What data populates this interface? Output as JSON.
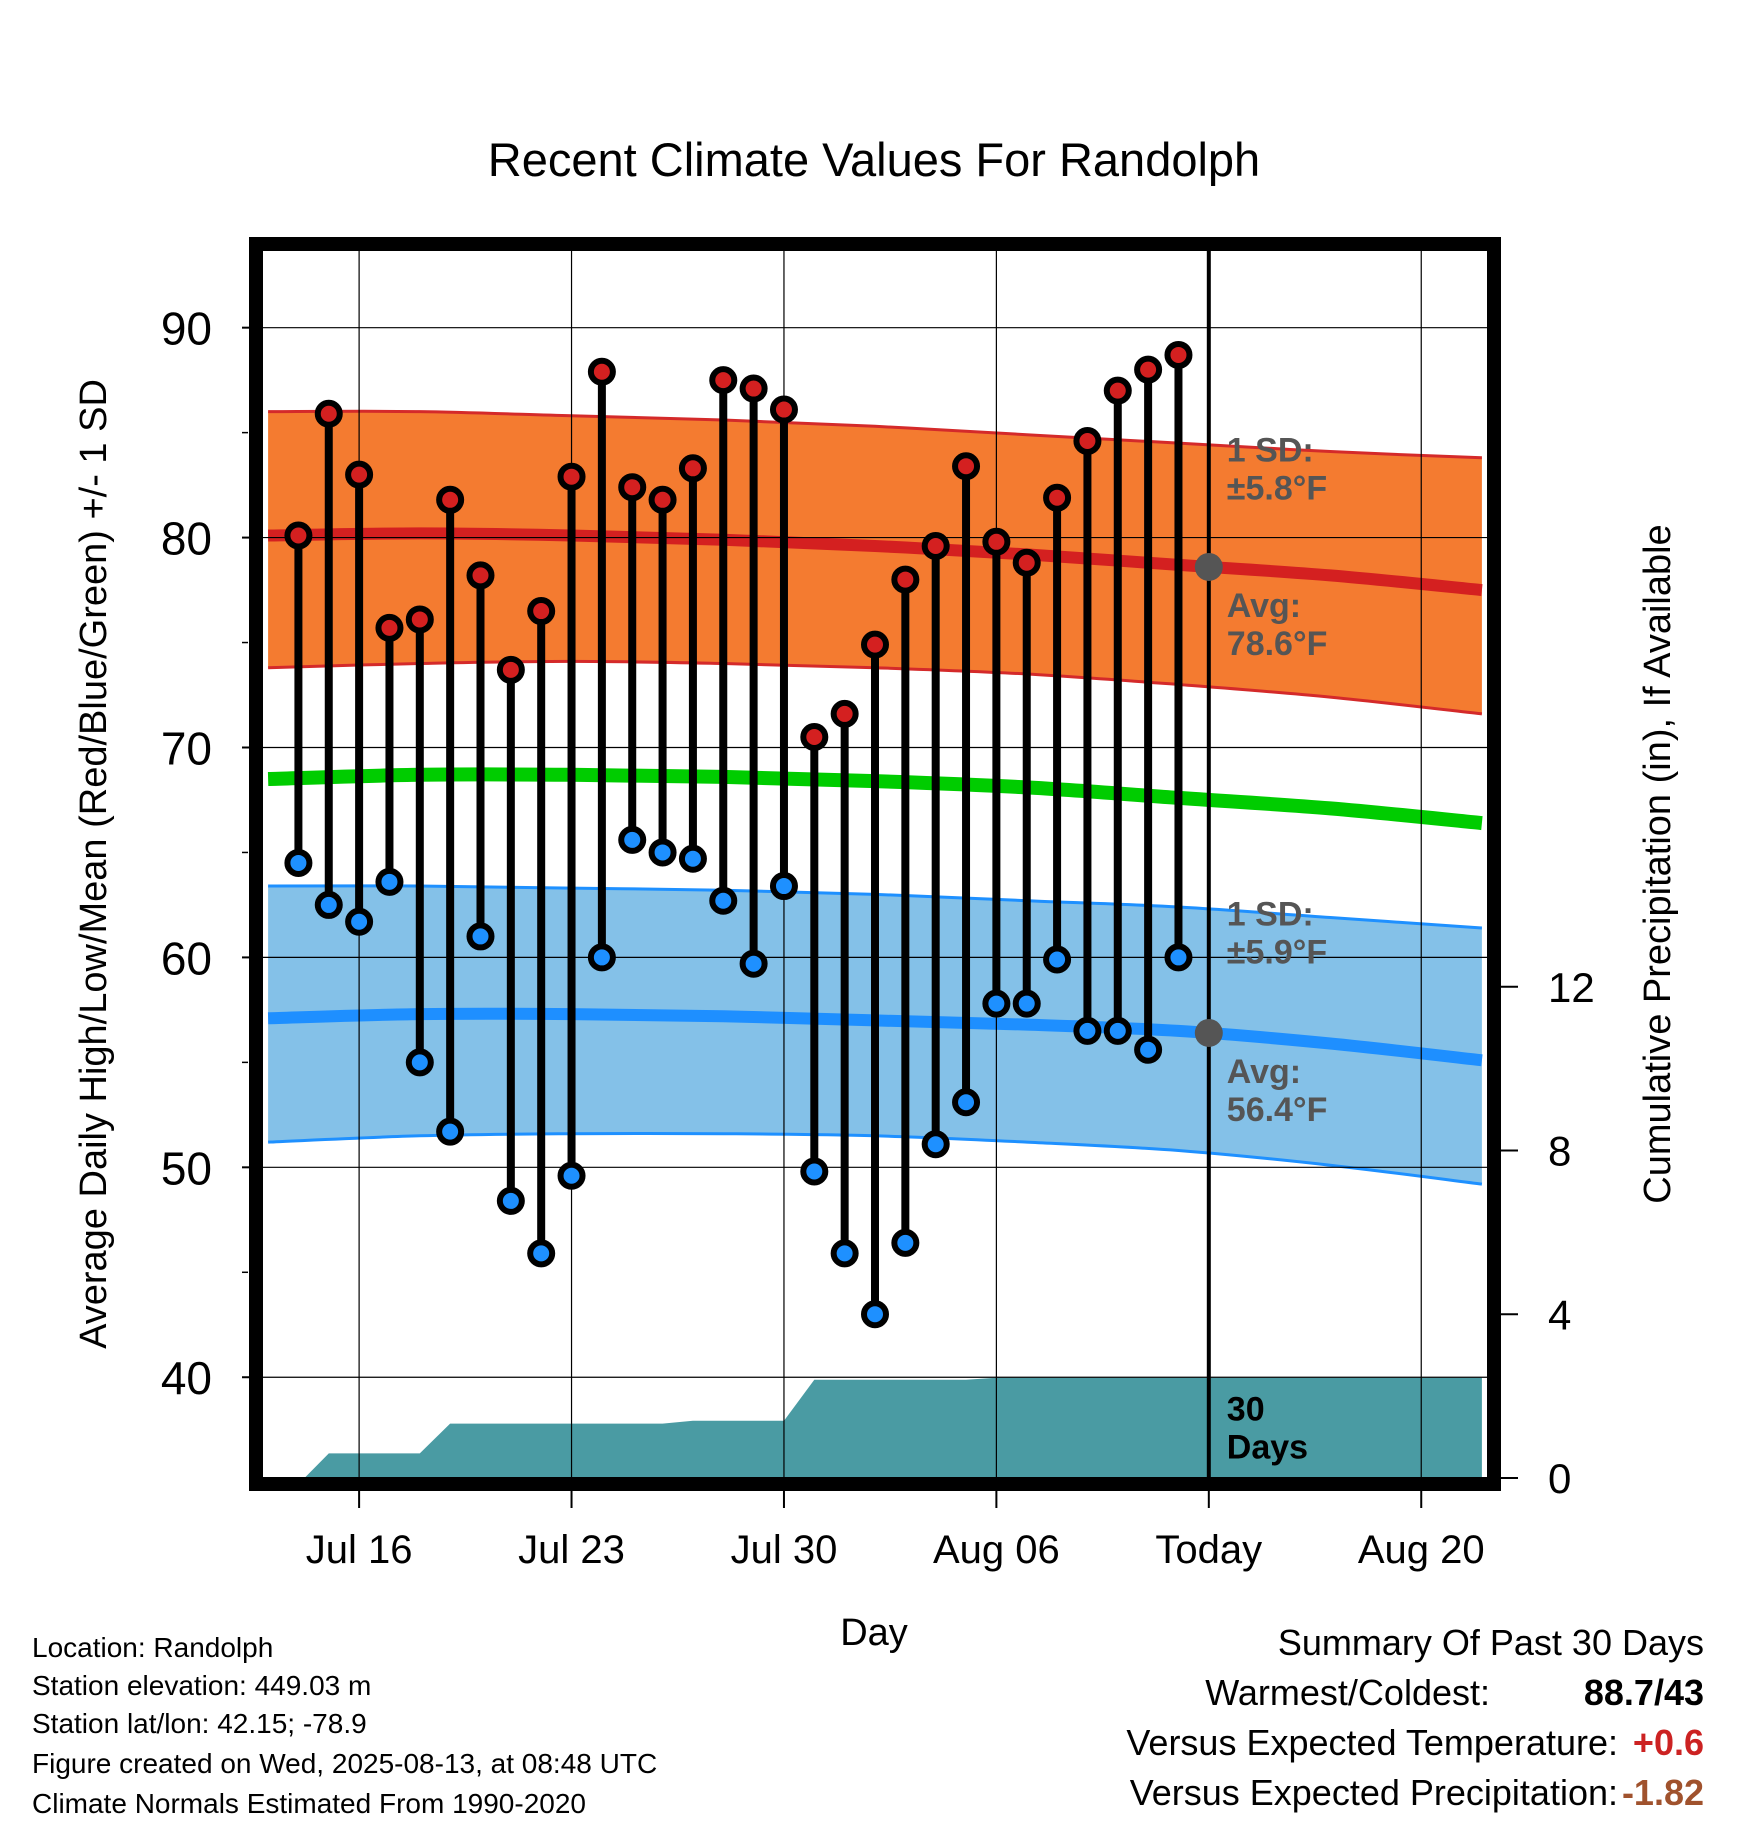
{
  "chart_data": {
    "type": "line",
    "title": "Recent Climate Values For Randolph",
    "xlabel": "Day",
    "ylabel": "Average Daily High/Low/Mean (Red/Blue/Green) +/- 1 SD",
    "y2label": "Cumulative Precipitation (in), If Available",
    "ylim": [
      35.2,
      93.7
    ],
    "y_ticks": [
      "40",
      "50",
      "60",
      "70",
      "80",
      "90"
    ],
    "y2lim": [
      0,
      30
    ],
    "y2_ticks": [
      "0",
      "4",
      "8",
      "12"
    ],
    "xlim_day": [
      12.8,
      53.2
    ],
    "x_tick_days": [
      16,
      23,
      30,
      37,
      44,
      51
    ],
    "x_tick_labels": [
      "Jul 16",
      "Jul 23",
      "Jul 30",
      "Aug 06",
      "Today",
      "Aug 20"
    ],
    "today_day": 44,
    "colors": {
      "high_band": "#f47b30",
      "high_band_edge": "#d42a2a",
      "high_avg": "#d42020",
      "low_band": "#84c1e8",
      "low_band_edge": "#1e90ff",
      "low_avg": "#1e8fff",
      "mean": "#00cc00",
      "precip": "#4a9ba3",
      "high_dot": "#d42020",
      "low_dot": "#1e90ff",
      "today_dot": "#555555",
      "annotation": "#555555",
      "temp_departure": "#cc2222",
      "precip_departure": "#a0522d"
    },
    "normals": {
      "days": [
        13,
        18,
        23,
        28,
        33,
        38,
        43,
        48,
        53
      ],
      "high_avg": [
        80.1,
        80.2,
        80.1,
        79.9,
        79.6,
        79.2,
        78.7,
        78.2,
        77.5
      ],
      "high_upper": [
        86.0,
        86.0,
        85.8,
        85.6,
        85.3,
        84.9,
        84.5,
        84.1,
        83.8
      ],
      "high_lower": [
        73.8,
        74.0,
        74.1,
        74.0,
        73.8,
        73.5,
        73.0,
        72.4,
        71.6
      ],
      "mean": [
        68.5,
        68.7,
        68.7,
        68.6,
        68.4,
        68.1,
        67.6,
        67.1,
        66.4
      ],
      "low_avg": [
        57.1,
        57.3,
        57.3,
        57.2,
        57.0,
        56.8,
        56.5,
        55.9,
        55.1
      ],
      "low_upper": [
        63.4,
        63.4,
        63.3,
        63.2,
        63.0,
        62.7,
        62.4,
        61.9,
        61.4
      ],
      "low_lower": [
        51.2,
        51.5,
        51.6,
        51.6,
        51.5,
        51.2,
        50.8,
        50.1,
        49.2
      ]
    },
    "series": [
      {
        "name": "High",
        "days": [
          14,
          15,
          16,
          17,
          18,
          19,
          20,
          21,
          22,
          23,
          24,
          25,
          26,
          27,
          28,
          29,
          30,
          31,
          32,
          33,
          34,
          35,
          36,
          37,
          38,
          39,
          40,
          41,
          42,
          43
        ],
        "values": [
          80.1,
          85.9,
          83.0,
          75.7,
          76.1,
          81.8,
          78.2,
          73.7,
          76.5,
          82.9,
          87.9,
          82.4,
          81.8,
          83.3,
          87.5,
          87.1,
          86.1,
          70.5,
          71.6,
          74.9,
          78.0,
          79.6,
          83.4,
          79.8,
          78.8,
          81.9,
          84.6,
          87.0,
          88.0,
          88.7
        ]
      },
      {
        "name": "Low",
        "days": [
          14,
          15,
          16,
          17,
          18,
          19,
          20,
          21,
          22,
          23,
          24,
          25,
          26,
          27,
          28,
          29,
          30,
          31,
          32,
          33,
          34,
          35,
          36,
          37,
          38,
          39,
          40,
          41,
          42,
          43
        ],
        "values": [
          64.5,
          62.5,
          61.7,
          63.6,
          55.0,
          51.7,
          61.0,
          48.4,
          45.9,
          49.6,
          60.0,
          65.6,
          65.0,
          64.7,
          62.7,
          59.7,
          63.4,
          49.8,
          45.9,
          43.0,
          46.4,
          51.1,
          53.1,
          57.8,
          57.8,
          59.9,
          56.5,
          56.5,
          55.6,
          60.0
        ]
      }
    ],
    "precip": {
      "days": [
        13,
        14.2,
        15,
        16,
        17,
        18,
        19,
        20,
        21,
        22,
        23,
        24,
        25,
        26,
        27,
        28,
        29,
        30,
        31,
        32,
        33,
        34,
        35,
        36,
        37,
        38,
        39,
        40,
        41,
        42,
        43,
        44,
        45,
        50,
        53
      ],
      "values": [
        0,
        0,
        0.6,
        0.6,
        0.6,
        0.6,
        1.33,
        1.33,
        1.33,
        1.33,
        1.33,
        1.33,
        1.33,
        1.33,
        1.4,
        1.4,
        1.4,
        1.4,
        2.4,
        2.4,
        2.4,
        2.4,
        2.4,
        2.4,
        2.45,
        2.45,
        2.45,
        2.45,
        2.45,
        2.45,
        2.45,
        2.45,
        2.45,
        2.45,
        2.45
      ]
    },
    "annotations": {
      "high_sd": [
        "1 SD:",
        "±5.8°F"
      ],
      "high_avg": [
        "Avg:",
        "78.6°F"
      ],
      "low_sd": [
        "1 SD:",
        "±5.9°F"
      ],
      "low_avg": [
        "Avg:",
        "56.4°F"
      ],
      "period": [
        "30",
        "Days"
      ]
    },
    "today_avg_high": 78.6,
    "today_avg_low": 56.4
  },
  "info": {
    "location": "Location: Randolph",
    "elevation": "Station elevation: 449.03 m",
    "latlon": "Station lat/lon: 42.15; -78.9",
    "created": "Figure created on Wed, 2025-08-13, at 08:48 UTC",
    "normals": "Climate Normals Estimated From 1990-2020"
  },
  "summary": {
    "heading": "Summary Of Past 30 Days",
    "warm_cold_label": "Warmest/Coldest:",
    "warm_cold_value": "88.7/43",
    "temp_label": "Versus Expected Temperature:",
    "temp_value": "+0.6",
    "precip_label": "Versus Expected Precipitation:",
    "precip_value": "-1.82"
  }
}
